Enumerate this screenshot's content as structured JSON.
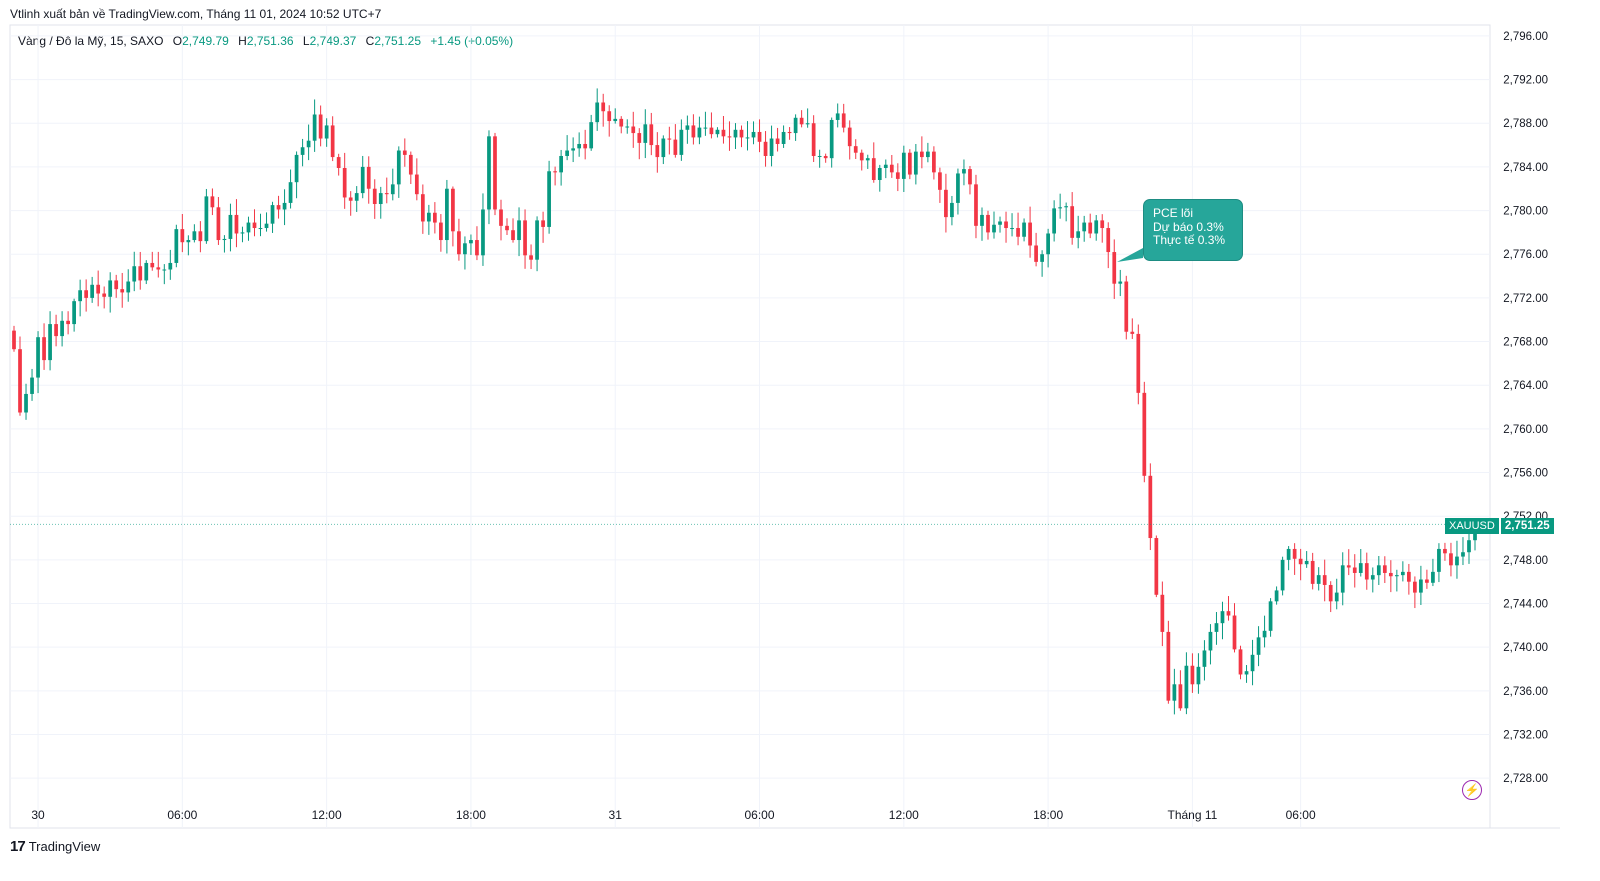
{
  "caption": "Vtlinh xuất bản về TradingView.com, Tháng 11 01, 2024 10:52 UTC+7",
  "legend": {
    "symbol": "Vàng / Đô la Mỹ, 15, SAXO",
    "o_label": "O",
    "o_value": "2,749.79",
    "h_label": "H",
    "h_value": "2,751.36",
    "l_label": "L",
    "l_value": "2,749.37",
    "c_label": "C",
    "c_value": "2,751.25",
    "change": "+1.45 (+0.05%)"
  },
  "callout": {
    "line1": "PCE lõi",
    "line2": "Dự báo 0.3%",
    "line3": "Thực tế 0.3%"
  },
  "price_tag": {
    "symbol": "XAUUSD",
    "price": "2,751.25"
  },
  "brand": {
    "logo": "17",
    "name": "TradingView"
  },
  "colors": {
    "up": "#089981",
    "down": "#f23645",
    "callout": "#26a69a",
    "grid": "#f0f3fa"
  },
  "icons": {
    "alert": "lightning-bolt-icon"
  },
  "chart_data": {
    "type": "candlestick",
    "instrument": "Vàng / Đô la Mỹ",
    "interval": "15",
    "ylim": [
      2726,
      2797
    ],
    "y_ticks": [
      "2,796.00",
      "2,792.00",
      "2,788.00",
      "2,784.00",
      "2,780.00",
      "2,776.00",
      "2,772.00",
      "2,768.00",
      "2,764.00",
      "2,760.00",
      "2,756.00",
      "2,752.00",
      "2,748.00",
      "2,744.00",
      "2,740.00",
      "2,736.00",
      "2,732.00",
      "2,728.00"
    ],
    "x_ticks": [
      "30",
      "06:00",
      "12:00",
      "18:00",
      "31",
      "06:00",
      "12:00",
      "18:00",
      "Tháng 11",
      "06:00"
    ],
    "last_price": 2751.25,
    "annotation": "PCE lõi / Dự báo 0.3% / Thực tế 0.3%",
    "close": [
      2767.3,
      2761.5,
      2763.2,
      2764.7,
      2768.4,
      2766.3,
      2769.6,
      2768.5,
      2769.9,
      2769.6,
      2771.7,
      2772.7,
      2772.0,
      2773.2,
      2772.4,
      2772.1,
      2773.6,
      2772.8,
      2772.5,
      2773.5,
      2774.9,
      2773.6,
      2775.2,
      2774.8,
      2774.6,
      2774.6,
      2775.2,
      2778.3,
      2777.1,
      2777.3,
      2778.1,
      2777.2,
      2781.3,
      2780.3,
      2777.3,
      2777.4,
      2779.6,
      2777.9,
      2778.0,
      2778.9,
      2778.4,
      2778.4,
      2778.8,
      2780.5,
      2780.1,
      2780.7,
      2782.6,
      2785.1,
      2785.8,
      2786.4,
      2788.8,
      2786.6,
      2787.8,
      2784.9,
      2783.9,
      2781.2,
      2780.9,
      2781.6,
      2784.0,
      2782.0,
      2780.6,
      2781.6,
      2781.5,
      2782.4,
      2785.5,
      2785.1,
      2783.3,
      2781.5,
      2779.0,
      2779.8,
      2778.9,
      2777.3,
      2782.0,
      2778.1,
      2776.0,
      2777.0,
      2777.3,
      2775.9,
      2780.1,
      2786.8,
      2780.1,
      2778.6,
      2778.2,
      2777.3,
      2779.1,
      2775.9,
      2775.5,
      2779.1,
      2778.5,
      2783.6,
      2783.5,
      2785.0,
      2785.5,
      2785.7,
      2786.1,
      2785.7,
      2788.1,
      2789.9,
      2789.1,
      2788.2,
      2788.4,
      2787.7,
      2787.7,
      2787.1,
      2786.2,
      2787.9,
      2786.0,
      2784.9,
      2786.6,
      2786.5,
      2785.1,
      2787.4,
      2787.8,
      2786.7,
      2787.6,
      2787.6,
      2787.0,
      2787.4,
      2786.8,
      2786.7,
      2787.4,
      2786.7,
      2786.7,
      2787.2,
      2786.3,
      2785.0,
      2786.6,
      2786.1,
      2787.2,
      2787.1,
      2788.5,
      2787.9,
      2788.0,
      2785.0,
      2785.0,
      2784.8,
      2788.3,
      2788.9,
      2787.6,
      2785.9,
      2785.3,
      2784.6,
      2784.8,
      2782.8,
      2783.9,
      2784.2,
      2783.5,
      2782.9,
      2785.3,
      2783.3,
      2785.4,
      2784.9,
      2785.4,
      2783.5,
      2781.9,
      2779.4,
      2780.7,
      2783.4,
      2783.8,
      2782.4,
      2778.6,
      2779.6,
      2778.0,
      2778.7,
      2779.0,
      2778.4,
      2778.4,
      2777.6,
      2778.9,
      2776.8,
      2775.3,
      2776.0,
      2777.9,
      2780.2,
      2780.3,
      2780.4,
      2777.5,
      2778.1,
      2778.9,
      2777.9,
      2779.1,
      2778.4,
      2776.2,
      2773.3,
      2773.5,
      2768.9,
      2768.7,
      2763.3,
      2755.7,
      2750.0,
      2744.8,
      2741.4,
      2735.1,
      2736.6,
      2734.4,
      2738.3,
      2736.6,
      2738.2,
      2739.7,
      2741.4,
      2742.2,
      2743.3,
      2742.9,
      2739.8,
      2737.5,
      2737.8,
      2739.3,
      2740.9,
      2741.5,
      2744.2,
      2745.2,
      2748.0,
      2749.0,
      2748.1,
      2747.6,
      2747.9,
      2745.8,
      2746.6,
      2745.7,
      2744.2,
      2745.0,
      2747.5,
      2747.3,
      2746.8,
      2747.7,
      2746.2,
      2746.6,
      2747.5,
      2746.8,
      2746.5,
      2746.6,
      2746.9,
      2746.0,
      2745.0,
      2746.2,
      2745.9,
      2746.9,
      2749.0,
      2748.6,
      2747.5,
      2748.3,
      2748.7,
      2749.8,
      2751.25
    ]
  }
}
